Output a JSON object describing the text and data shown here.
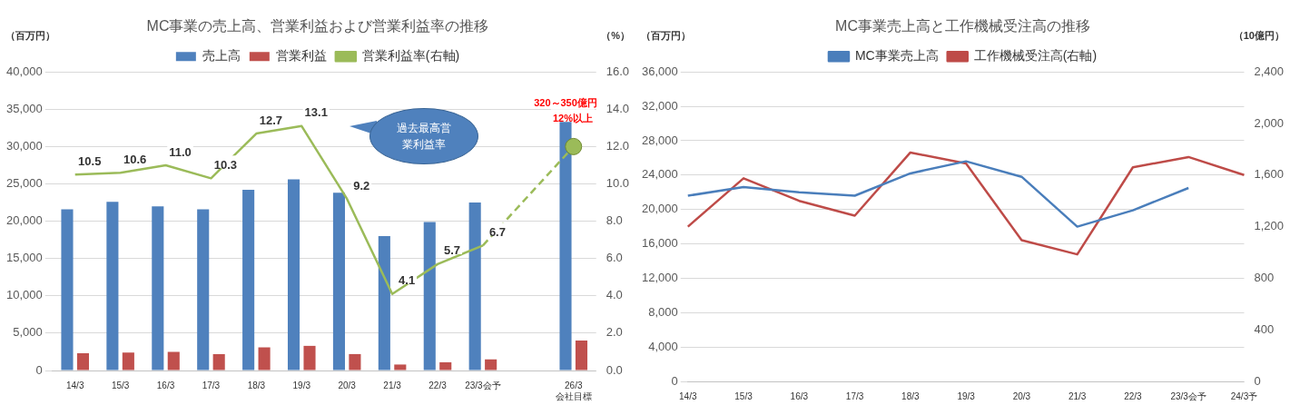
{
  "chart_data": [
    {
      "type": "bar",
      "title": "MC事業の売上高、営業利益および営業利益率の推移",
      "ylabel": "（百万円）",
      "y2label": "（%）",
      "categories": [
        "14/3",
        "15/3",
        "16/3",
        "17/3",
        "18/3",
        "19/3",
        "20/3",
        "21/3",
        "22/3",
        "23/3会予",
        null,
        "26/3\n会社目標"
      ],
      "series": [
        {
          "name": "売上高",
          "color": "#4f81bd",
          "values": [
            21600,
            22600,
            22000,
            21600,
            24200,
            25600,
            23800,
            18000,
            19900,
            22500,
            null,
            33500
          ]
        },
        {
          "name": "営業利益",
          "color": "#c0504d",
          "values": [
            2300,
            2400,
            2500,
            2200,
            3100,
            3300,
            2200,
            800,
            1100,
            1500,
            null,
            4000
          ]
        },
        {
          "name": "営業利益率(右軸)",
          "type": "line",
          "axis": "y2",
          "color": "#9bbb59",
          "line_style": "solid",
          "marker": "none",
          "values": [
            10.5,
            10.6,
            11.0,
            10.3,
            12.7,
            13.1,
            9.2,
            4.1,
            5.7,
            6.7,
            null,
            null
          ],
          "value_labels": [
            "10.5",
            "10.6",
            "11.0",
            "10.3",
            "12.7",
            "13.1",
            "9.2",
            "4.1",
            "5.7",
            "6.7",
            null,
            null
          ]
        },
        {
          "type": "line",
          "axis": "y2",
          "color": "#9bbb59",
          "line_style": "dashed",
          "marker": "none",
          "values": [
            null,
            null,
            null,
            null,
            null,
            null,
            null,
            null,
            null,
            6.7,
            null,
            12.0
          ]
        },
        {
          "type": "scatter",
          "axis": "y2",
          "color": "#9bbb59",
          "marker": "circle",
          "x": [
            "26/3\n会社目標"
          ],
          "values": [
            12.0
          ]
        }
      ],
      "ylim": [
        0,
        40000
      ],
      "yticks": [
        0,
        {
          "value": 5000,
          "label": "5,000"
        },
        {
          "value": 10000,
          "label": "10,000"
        },
        {
          "value": 15000,
          "label": "15,000"
        },
        {
          "value": 20000,
          "label": "20,000"
        },
        {
          "value": 25000,
          "label": "25,000"
        },
        {
          "value": 30000,
          "label": "30,000"
        },
        {
          "value": 35000,
          "label": "35,000"
        },
        {
          "value": 40000,
          "label": "40,000"
        }
      ],
      "y2lim": [
        0,
        16
      ],
      "y2ticks": [
        {
          "value": 0,
          "label": "0.0"
        },
        {
          "value": 2,
          "label": "2.0"
        },
        {
          "value": 4,
          "label": "4.0"
        },
        {
          "value": 6,
          "label": "6.0"
        },
        {
          "value": 8,
          "label": "8.0"
        },
        {
          "value": 10,
          "label": "10.0"
        },
        {
          "value": 12,
          "label": "12.0"
        },
        {
          "value": 14,
          "label": "14.0"
        },
        {
          "value": 16,
          "label": "16.0"
        }
      ],
      "grid": "y",
      "legend": "top",
      "annotations": [
        "320～350億円",
        "12%以上",
        "過去最高営業利益率"
      ]
    },
    {
      "type": "line",
      "title": "MC事業売上高と工作機械受注高の推移",
      "ylabel": "（百万円）",
      "y2label": "（10億円）",
      "categories": [
        "14/3",
        "15/3",
        "16/3",
        "17/3",
        "18/3",
        "19/3",
        "20/3",
        "21/3",
        "22/3",
        "23/3会予",
        "24/3予"
      ],
      "series": [
        {
          "name": "MC事業売上高",
          "color": "#4a7ebb",
          "values": [
            21600,
            22600,
            22000,
            21600,
            24200,
            25600,
            23800,
            18000,
            19900,
            22500,
            null
          ]
        },
        {
          "name": "工作機械受注高(右軸)",
          "axis": "y2",
          "color": "#be4b48",
          "values": [
            1200,
            1575,
            1400,
            1285,
            1775,
            1690,
            1095,
            985,
            1660,
            1740,
            1600
          ]
        }
      ],
      "ylim": [
        0,
        36000
      ],
      "yticks": [
        0,
        {
          "value": 4000,
          "label": "4,000"
        },
        {
          "value": 8000,
          "label": "8,000"
        },
        {
          "value": 12000,
          "label": "12,000"
        },
        {
          "value": 16000,
          "label": "16,000"
        },
        {
          "value": 20000,
          "label": "20,000"
        },
        {
          "value": 24000,
          "label": "24,000"
        },
        {
          "value": 28000,
          "label": "28,000"
        },
        {
          "value": 32000,
          "label": "32,000"
        },
        {
          "value": 36000,
          "label": "36,000"
        }
      ],
      "y2lim": [
        0,
        2400
      ],
      "y2ticks": [
        0,
        400,
        800,
        {
          "value": 1200,
          "label": "1,200"
        },
        {
          "value": 1600,
          "label": "1,600"
        },
        {
          "value": 2000,
          "label": "2,000"
        },
        {
          "value": 2400,
          "label": "2,400"
        }
      ],
      "grid": "y",
      "legend": "top",
      "line_style": "solid",
      "marker": "none"
    }
  ]
}
